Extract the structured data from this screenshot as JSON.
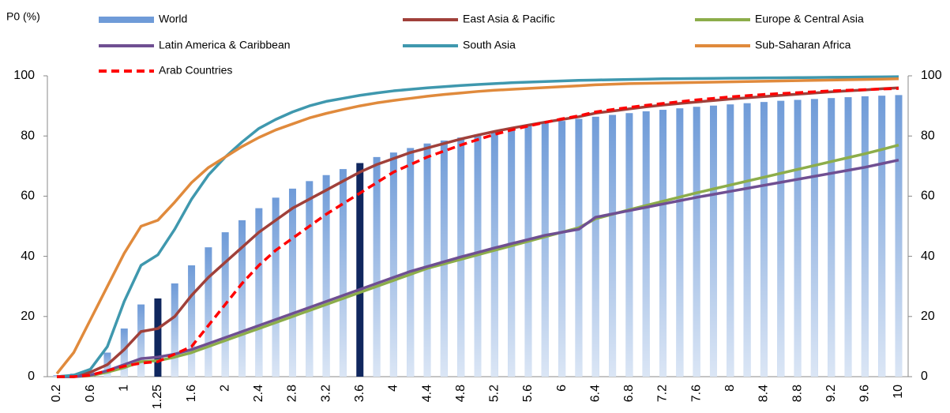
{
  "chart_data": {
    "type": "combo",
    "y_label": "P0 (%)",
    "categories": [
      "0.2",
      null,
      "0.6",
      null,
      "1",
      null,
      "1.25",
      null,
      "1.6",
      null,
      "2",
      null,
      "2.4",
      null,
      "2.8",
      null,
      "3.2",
      null,
      "3.6",
      null,
      "4",
      null,
      "4.4",
      null,
      "4.8",
      null,
      "5.2",
      null,
      "5.6",
      null,
      "6",
      null,
      "6.4",
      null,
      "6.8",
      null,
      "7.2",
      null,
      "7.6",
      null,
      "8",
      null,
      "8.4",
      null,
      "8.8",
      null,
      "9.2",
      null,
      "9.6",
      null,
      "10"
    ],
    "ylim": [
      0,
      100
    ],
    "yticks": [
      0,
      20,
      40,
      60,
      80,
      100
    ],
    "y2lim": [
      0,
      100
    ],
    "y2ticks": [
      0,
      20,
      40,
      60,
      80,
      100
    ],
    "series": [
      {
        "name": "World",
        "type": "bar",
        "color": "#6f9bd8",
        "highlight": [
          6,
          18
        ],
        "highlight_color": "#10275e",
        "values": [
          0.5,
          1,
          2,
          8,
          16,
          24,
          26,
          31,
          37,
          43,
          48,
          52,
          56,
          59.5,
          62.5,
          65,
          67,
          69,
          71,
          73,
          74.5,
          76,
          77.5,
          78.5,
          79.5,
          80.5,
          81.5,
          82.5,
          83.5,
          84.3,
          85,
          85.7,
          86.4,
          87,
          87.6,
          88.2,
          88.7,
          89.2,
          89.7,
          90.1,
          90.5,
          90.9,
          91.3,
          91.7,
          92,
          92.3,
          92.6,
          92.9,
          93.2,
          93.4,
          93.6
        ]
      },
      {
        "name": "East Asia & Pacific",
        "type": "line",
        "color": "#a0403a",
        "values": [
          0,
          0.3,
          1.5,
          4,
          9,
          15,
          16,
          20,
          27,
          33,
          38,
          43,
          48,
          52,
          56,
          59,
          62,
          65,
          68,
          70.5,
          72.5,
          74.5,
          76,
          77.5,
          79,
          80.3,
          81.5,
          82.6,
          83.6,
          84.6,
          85.5,
          86.4,
          87.6,
          88.3,
          89,
          89.7,
          90.3,
          90.8,
          91.3,
          91.8,
          92.3,
          92.7,
          93.1,
          93.5,
          93.9,
          94.3,
          94.7,
          95,
          95.3,
          95.7,
          96
        ]
      },
      {
        "name": "Europe & Central Asia",
        "type": "line",
        "color": "#8cad4a",
        "values": [
          0,
          0,
          0.3,
          1.5,
          3,
          5,
          5.3,
          6.5,
          8,
          10,
          12,
          14,
          16,
          18,
          20,
          22,
          24,
          26,
          28,
          30,
          32,
          34,
          36,
          37.5,
          39,
          40.5,
          42,
          43.5,
          45,
          46.5,
          48,
          49.5,
          52.5,
          54,
          55.5,
          56.9,
          58.3,
          59.7,
          61.1,
          62.4,
          63.7,
          65,
          66.3,
          67.6,
          68.9,
          70.2,
          71.5,
          72.8,
          74.1,
          75.5,
          77
        ]
      },
      {
        "name": "Latin America & Caribbean",
        "type": "line",
        "color": "#6f4f92",
        "values": [
          0,
          0,
          0.5,
          2,
          4,
          6,
          6.5,
          7.5,
          9,
          11,
          13,
          15,
          17,
          19,
          21,
          23,
          25,
          27,
          29,
          31,
          33,
          35,
          36.6,
          38.2,
          39.8,
          41.3,
          42.8,
          44.2,
          45.6,
          47,
          48,
          49,
          53,
          54.1,
          55.2,
          56.3,
          57.4,
          58.5,
          59.6,
          60.6,
          61.6,
          62.6,
          63.6,
          64.6,
          65.6,
          66.6,
          67.6,
          68.6,
          69.6,
          70.8,
          72
        ]
      },
      {
        "name": "South Asia",
        "type": "line",
        "color": "#3f98ae",
        "values": [
          0,
          0.5,
          2.5,
          10,
          25,
          37,
          40.5,
          49,
          59,
          67,
          73,
          78,
          82.5,
          85.5,
          88,
          90,
          91.5,
          92.5,
          93.5,
          94.3,
          95,
          95.5,
          96,
          96.4,
          96.8,
          97.1,
          97.4,
          97.7,
          97.9,
          98.1,
          98.3,
          98.5,
          98.6,
          98.7,
          98.8,
          98.9,
          99,
          99.05,
          99.1,
          99.15,
          99.2,
          99.25,
          99.3,
          99.35,
          99.4,
          99.45,
          99.5,
          99.55,
          99.6,
          99.65,
          99.7
        ]
      },
      {
        "name": "Sub-Saharan Africa",
        "type": "line",
        "color": "#e08a3c",
        "values": [
          1,
          8,
          19,
          30,
          41,
          50,
          52,
          58,
          64.5,
          69.5,
          73,
          76.5,
          79.5,
          82,
          84,
          86,
          87.5,
          88.8,
          90,
          91,
          91.8,
          92.5,
          93.2,
          93.8,
          94.3,
          94.8,
          95.2,
          95.5,
          95.8,
          96.1,
          96.4,
          96.7,
          97,
          97.2,
          97.4,
          97.5,
          97.6,
          97.7,
          97.8,
          97.9,
          98,
          98.1,
          98.2,
          98.3,
          98.4,
          98.5,
          98.6,
          98.7,
          98.8,
          98.9,
          99
        ]
      },
      {
        "name": "Arab Countries",
        "type": "line",
        "color": "#ff0000",
        "dashed": true,
        "values": [
          0,
          0,
          0.5,
          2,
          3.5,
          4.5,
          5,
          7.5,
          10,
          17,
          24,
          31,
          37,
          42,
          46,
          50,
          54,
          57.5,
          61,
          64.5,
          68,
          70.5,
          73,
          75,
          77,
          78.8,
          80.5,
          82,
          83.3,
          84.5,
          85.7,
          86.7,
          88,
          88.8,
          89.5,
          90.2,
          90.8,
          91.4,
          92,
          92.5,
          93,
          93.4,
          93.8,
          94.1,
          94.4,
          94.7,
          95,
          95.2,
          95.4,
          95.6,
          95.8
        ]
      }
    ]
  }
}
